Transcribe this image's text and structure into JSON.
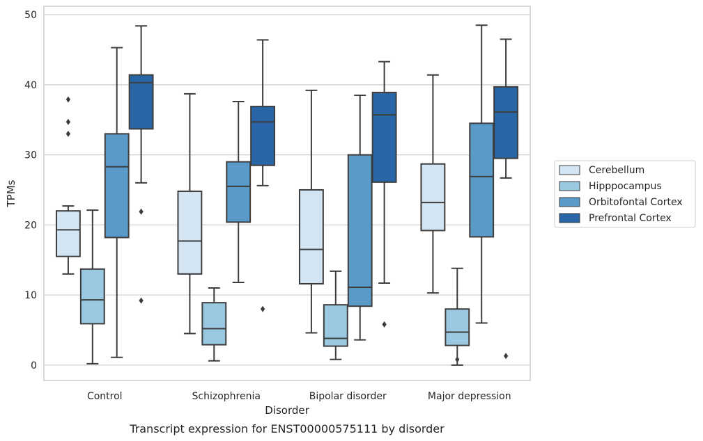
{
  "chart_data": {
    "type": "boxplot",
    "caption": "Transcript expression for ENST00000575111 by disorder",
    "xlabel": "Disorder",
    "ylabel": "TPMs",
    "ylim": [
      -2.2,
      51.2
    ],
    "yticks": [
      0,
      10,
      20,
      30,
      40,
      50
    ],
    "grid": true,
    "legend_placement": "right",
    "categories": [
      "Control",
      "Schizophrenia",
      "Bipolar disorder",
      "Major depression"
    ],
    "series": [
      {
        "name": "Cerebellum",
        "color": "#d3e4f3",
        "boxes": [
          {
            "whislo": 13.0,
            "q1": 15.5,
            "med": 19.3,
            "q3": 22.0,
            "whishi": 22.7,
            "fliers": [
              33.0,
              34.7,
              37.9
            ]
          },
          {
            "whislo": 4.5,
            "q1": 13.0,
            "med": 17.7,
            "q3": 24.8,
            "whishi": 38.7,
            "fliers": []
          },
          {
            "whislo": 4.6,
            "q1": 11.6,
            "med": 16.5,
            "q3": 25.0,
            "whishi": 39.2,
            "fliers": []
          },
          {
            "whislo": 10.3,
            "q1": 19.2,
            "med": 23.2,
            "q3": 28.7,
            "whishi": 41.4,
            "fliers": []
          }
        ]
      },
      {
        "name": "Hipppocampus",
        "color": "#9ac8e0",
        "boxes": [
          {
            "whislo": 0.2,
            "q1": 5.9,
            "med": 9.3,
            "q3": 13.7,
            "whishi": 22.1,
            "fliers": []
          },
          {
            "whislo": 0.6,
            "q1": 2.9,
            "med": 5.2,
            "q3": 8.9,
            "whishi": 11.0,
            "fliers": []
          },
          {
            "whislo": 0.8,
            "q1": 2.7,
            "med": 3.8,
            "q3": 8.6,
            "whishi": 13.4,
            "fliers": []
          },
          {
            "whislo": 0.0,
            "q1": 2.8,
            "med": 4.7,
            "q3": 8.0,
            "whishi": 13.8,
            "fliers": [
              0.8
            ]
          }
        ]
      },
      {
        "name": "Orbitofontal Cortex",
        "color": "#5a9ac9",
        "boxes": [
          {
            "whislo": 1.1,
            "q1": 18.2,
            "med": 28.3,
            "q3": 33.0,
            "whishi": 45.3,
            "fliers": []
          },
          {
            "whislo": 11.8,
            "q1": 20.4,
            "med": 25.5,
            "q3": 29.0,
            "whishi": 37.6,
            "fliers": []
          },
          {
            "whislo": 3.6,
            "q1": 8.4,
            "med": 11.1,
            "q3": 30.0,
            "whishi": 38.5,
            "fliers": []
          },
          {
            "whislo": 6.0,
            "q1": 18.3,
            "med": 26.9,
            "q3": 34.5,
            "whishi": 48.5,
            "fliers": []
          }
        ]
      },
      {
        "name": "Prefrontal Cortex",
        "color": "#2866a8",
        "boxes": [
          {
            "whislo": 26.0,
            "q1": 33.7,
            "med": 40.3,
            "q3": 41.4,
            "whishi": 48.4,
            "fliers": [
              9.2,
              21.9
            ]
          },
          {
            "whislo": 25.6,
            "q1": 28.5,
            "med": 34.7,
            "q3": 36.9,
            "whishi": 46.4,
            "fliers": [
              8.0
            ]
          },
          {
            "whislo": 11.7,
            "q1": 26.1,
            "med": 35.7,
            "q3": 38.9,
            "whishi": 43.3,
            "fliers": [
              5.8
            ]
          },
          {
            "whislo": 26.7,
            "q1": 29.5,
            "med": 36.1,
            "q3": 39.7,
            "whishi": 46.5,
            "fliers": [
              1.3
            ]
          }
        ]
      }
    ]
  }
}
